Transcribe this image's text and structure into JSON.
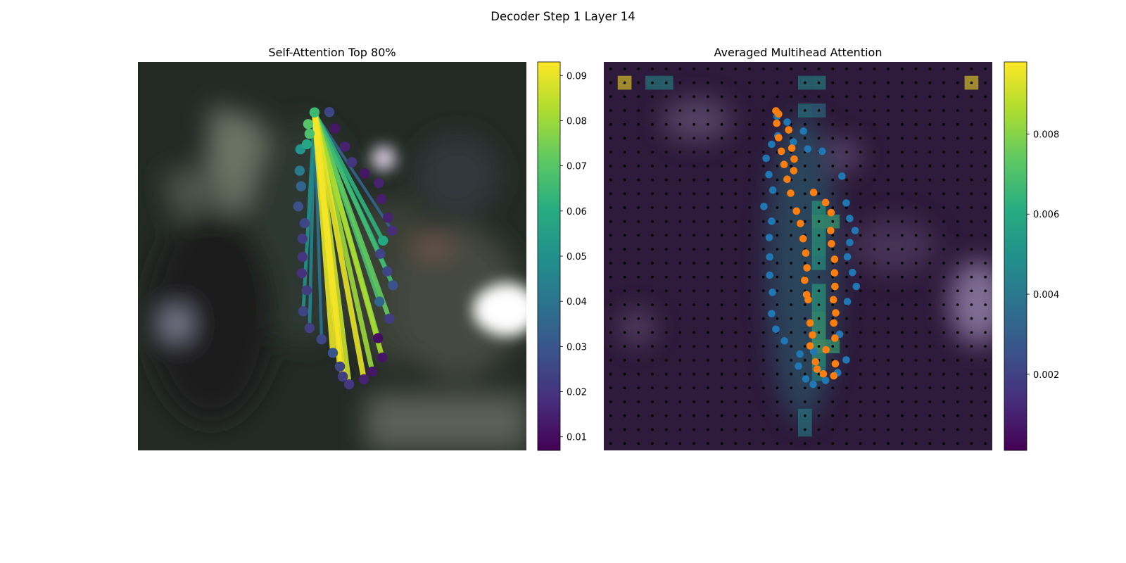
{
  "figure": {
    "title": "Decoder Step 1 Layer 14"
  },
  "chart_data": [
    {
      "type": "scatter",
      "title": "Self-Attention Top 80%",
      "xlim": [
        0,
        1
      ],
      "ylim": [
        0,
        1
      ],
      "grid": false,
      "background_image": "blurred photo of a hand (dark scene)",
      "colormap": "viridis",
      "colorbar": {
        "range": [
          0.007,
          0.093
        ],
        "ticks": [
          0.01,
          0.02,
          0.03,
          0.04,
          0.05,
          0.06,
          0.07,
          0.08,
          0.09
        ],
        "tick_labels": [
          "0.01",
          "0.02",
          "0.03",
          "0.04",
          "0.05",
          "0.06",
          "0.07",
          "0.08",
          "0.09"
        ]
      },
      "points": [
        {
          "x": 0.4545,
          "y": 0.87,
          "v": 0.065
        },
        {
          "x": 0.4382,
          "y": 0.84,
          "v": 0.07
        },
        {
          "x": 0.4418,
          "y": 0.815,
          "v": 0.068
        },
        {
          "x": 0.4182,
          "y": 0.775,
          "v": 0.052
        },
        {
          "x": 0.4345,
          "y": 0.788,
          "v": 0.058
        },
        {
          "x": 0.4164,
          "y": 0.72,
          "v": 0.042
        },
        {
          "x": 0.42,
          "y": 0.68,
          "v": 0.035
        },
        {
          "x": 0.4127,
          "y": 0.628,
          "v": 0.028
        },
        {
          "x": 0.4291,
          "y": 0.585,
          "v": 0.025
        },
        {
          "x": 0.4236,
          "y": 0.545,
          "v": 0.022
        },
        {
          "x": 0.4236,
          "y": 0.498,
          "v": 0.02
        },
        {
          "x": 0.4218,
          "y": 0.456,
          "v": 0.019
        },
        {
          "x": 0.4345,
          "y": 0.412,
          "v": 0.022
        },
        {
          "x": 0.4255,
          "y": 0.358,
          "v": 0.024
        },
        {
          "x": 0.4418,
          "y": 0.315,
          "v": 0.023
        },
        {
          "x": 0.4727,
          "y": 0.286,
          "v": 0.025
        },
        {
          "x": 0.5018,
          "y": 0.251,
          "v": 0.03
        },
        {
          "x": 0.52,
          "y": 0.216,
          "v": 0.025
        },
        {
          "x": 0.5273,
          "y": 0.19,
          "v": 0.022
        },
        {
          "x": 0.5436,
          "y": 0.17,
          "v": 0.021
        },
        {
          "x": 0.5818,
          "y": 0.183,
          "v": 0.015
        },
        {
          "x": 0.6036,
          "y": 0.203,
          "v": 0.012
        },
        {
          "x": 0.6291,
          "y": 0.239,
          "v": 0.012
        },
        {
          "x": 0.6182,
          "y": 0.289,
          "v": 0.01
        },
        {
          "x": 0.6473,
          "y": 0.339,
          "v": 0.022
        },
        {
          "x": 0.6218,
          "y": 0.383,
          "v": 0.035
        },
        {
          "x": 0.6564,
          "y": 0.425,
          "v": 0.028
        },
        {
          "x": 0.6418,
          "y": 0.461,
          "v": 0.025
        },
        {
          "x": 0.6236,
          "y": 0.506,
          "v": 0.024
        },
        {
          "x": 0.6309,
          "y": 0.54,
          "v": 0.058
        },
        {
          "x": 0.6545,
          "y": 0.566,
          "v": 0.018
        },
        {
          "x": 0.6436,
          "y": 0.599,
          "v": 0.015
        },
        {
          "x": 0.6273,
          "y": 0.647,
          "v": 0.014
        },
        {
          "x": 0.62,
          "y": 0.688,
          "v": 0.015
        },
        {
          "x": 0.5836,
          "y": 0.713,
          "v": 0.012
        },
        {
          "x": 0.5509,
          "y": 0.742,
          "v": 0.02
        },
        {
          "x": 0.5327,
          "y": 0.782,
          "v": 0.015
        },
        {
          "x": 0.5073,
          "y": 0.829,
          "v": 0.012
        },
        {
          "x": 0.4927,
          "y": 0.871,
          "v": 0.025
        }
      ],
      "links": [
        {
          "to": 15,
          "v": 0.04
        },
        {
          "to": 16,
          "v": 0.09
        },
        {
          "to": 17,
          "v": 0.091
        },
        {
          "to": 18,
          "v": 0.092
        },
        {
          "to": 19,
          "v": 0.086
        },
        {
          "to": 20,
          "v": 0.09
        },
        {
          "to": 21,
          "v": 0.08
        },
        {
          "to": 22,
          "v": 0.082
        },
        {
          "to": 23,
          "v": 0.075
        },
        {
          "to": 24,
          "v": 0.072
        },
        {
          "to": 25,
          "v": 0.068
        },
        {
          "to": 26,
          "v": 0.066
        },
        {
          "to": 27,
          "v": 0.06
        },
        {
          "to": 28,
          "v": 0.055
        },
        {
          "to": 29,
          "v": 0.062
        },
        {
          "to": 13,
          "v": 0.05
        },
        {
          "to": 14,
          "v": 0.045
        },
        {
          "to": 30,
          "v": 0.035
        }
      ]
    },
    {
      "type": "heatmap",
      "title": "Averaged Multihead Attention",
      "grid_size": [
        28,
        28
      ],
      "background_image": "blurred photo of a hand (dark scene), overlaid by attention",
      "colormap": "viridis",
      "colorbar": {
        "range": [
          0.0001,
          0.0098
        ],
        "ticks": [
          0.002,
          0.004,
          0.006,
          0.008
        ],
        "tick_labels": [
          "0.002",
          "0.004",
          "0.006",
          "0.008"
        ]
      },
      "hotspots": [
        {
          "row": 1,
          "col": 1,
          "v": 0.0098
        },
        {
          "row": 1,
          "col": 26,
          "v": 0.0098
        },
        {
          "row": 1,
          "col": 3,
          "v": 0.005
        },
        {
          "row": 1,
          "col": 4,
          "v": 0.005
        },
        {
          "row": 1,
          "col": 14,
          "v": 0.005
        },
        {
          "row": 1,
          "col": 15,
          "v": 0.005
        },
        {
          "row": 3,
          "col": 14,
          "v": 0.0045
        },
        {
          "row": 3,
          "col": 15,
          "v": 0.004
        },
        {
          "row": 10,
          "col": 15,
          "v": 0.006
        },
        {
          "row": 11,
          "col": 15,
          "v": 0.0065
        },
        {
          "row": 11,
          "col": 16,
          "v": 0.0065
        },
        {
          "row": 12,
          "col": 15,
          "v": 0.006
        },
        {
          "row": 13,
          "col": 15,
          "v": 0.006
        },
        {
          "row": 14,
          "col": 15,
          "v": 0.0055
        },
        {
          "row": 16,
          "col": 15,
          "v": 0.006
        },
        {
          "row": 17,
          "col": 15,
          "v": 0.006
        },
        {
          "row": 18,
          "col": 15,
          "v": 0.0065
        },
        {
          "row": 19,
          "col": 15,
          "v": 0.0065
        },
        {
          "row": 20,
          "col": 15,
          "v": 0.007
        },
        {
          "row": 20,
          "col": 16,
          "v": 0.0065
        },
        {
          "row": 21,
          "col": 15,
          "v": 0.006
        },
        {
          "row": 22,
          "col": 15,
          "v": 0.005
        },
        {
          "row": 25,
          "col": 14,
          "v": 0.0045
        },
        {
          "row": 26,
          "col": 14,
          "v": 0.0045
        }
      ],
      "series": [
        {
          "color": "#1f77b4",
          "points": [
            [
              0.446,
              0.14
            ],
            [
              0.472,
              0.155
            ],
            [
              0.514,
              0.178
            ],
            [
              0.448,
              0.19
            ],
            [
              0.432,
              0.212
            ],
            [
              0.488,
              0.206
            ],
            [
              0.525,
              0.224
            ],
            [
              0.418,
              0.248
            ],
            [
              0.562,
              0.23
            ],
            [
              0.425,
              0.29
            ],
            [
              0.613,
              0.294
            ],
            [
              0.435,
              0.33
            ],
            [
              0.624,
              0.363
            ],
            [
              0.412,
              0.372
            ],
            [
              0.633,
              0.403
            ],
            [
              0.432,
              0.41
            ],
            [
              0.647,
              0.434
            ],
            [
              0.426,
              0.452
            ],
            [
              0.633,
              0.465
            ],
            [
              0.427,
              0.502
            ],
            [
              0.627,
              0.502
            ],
            [
              0.64,
              0.542
            ],
            [
              0.427,
              0.549
            ],
            [
              0.65,
              0.578
            ],
            [
              0.434,
              0.593
            ],
            [
              0.627,
              0.617
            ],
            [
              0.432,
              0.648
            ],
            [
              0.607,
              0.701
            ],
            [
              0.443,
              0.688
            ],
            [
              0.54,
              0.745
            ],
            [
              0.465,
              0.718
            ],
            [
              0.505,
              0.752
            ],
            [
              0.624,
              0.767
            ],
            [
              0.501,
              0.783
            ],
            [
              0.602,
              0.8
            ],
            [
              0.52,
              0.816
            ],
            [
              0.539,
              0.83
            ],
            [
              0.571,
              0.82
            ]
          ]
        },
        {
          "color": "#ff7f0e",
          "points": [
            [
              0.443,
              0.126
            ],
            [
              0.45,
              0.134
            ],
            [
              0.445,
              0.158
            ],
            [
              0.476,
              0.175
            ],
            [
              0.45,
              0.195
            ],
            [
              0.484,
              0.222
            ],
            [
              0.457,
              0.23
            ],
            [
              0.49,
              0.25
            ],
            [
              0.464,
              0.264
            ],
            [
              0.489,
              0.28
            ],
            [
              0.472,
              0.302
            ],
            [
              0.54,
              0.336
            ],
            [
              0.481,
              0.338
            ],
            [
              0.571,
              0.362
            ],
            [
              0.496,
              0.384
            ],
            [
              0.585,
              0.388
            ],
            [
              0.506,
              0.416
            ],
            [
              0.584,
              0.434
            ],
            [
              0.513,
              0.455
            ],
            [
              0.586,
              0.468
            ],
            [
              0.52,
              0.492
            ],
            [
              0.594,
              0.508
            ],
            [
              0.523,
              0.53
            ],
            [
              0.594,
              0.543
            ],
            [
              0.517,
              0.562
            ],
            [
              0.595,
              0.578
            ],
            [
              0.522,
              0.599
            ],
            [
              0.591,
              0.612
            ],
            [
              0.526,
              0.612
            ],
            [
              0.597,
              0.646
            ],
            [
              0.531,
              0.672
            ],
            [
              0.592,
              0.672
            ],
            [
              0.537,
              0.703
            ],
            [
              0.595,
              0.711
            ],
            [
              0.531,
              0.731
            ],
            [
              0.572,
              0.741
            ],
            [
              0.545,
              0.772
            ],
            [
              0.596,
              0.777
            ],
            [
              0.549,
              0.791
            ],
            [
              0.565,
              0.803
            ],
            [
              0.592,
              0.808
            ]
          ]
        }
      ]
    }
  ]
}
